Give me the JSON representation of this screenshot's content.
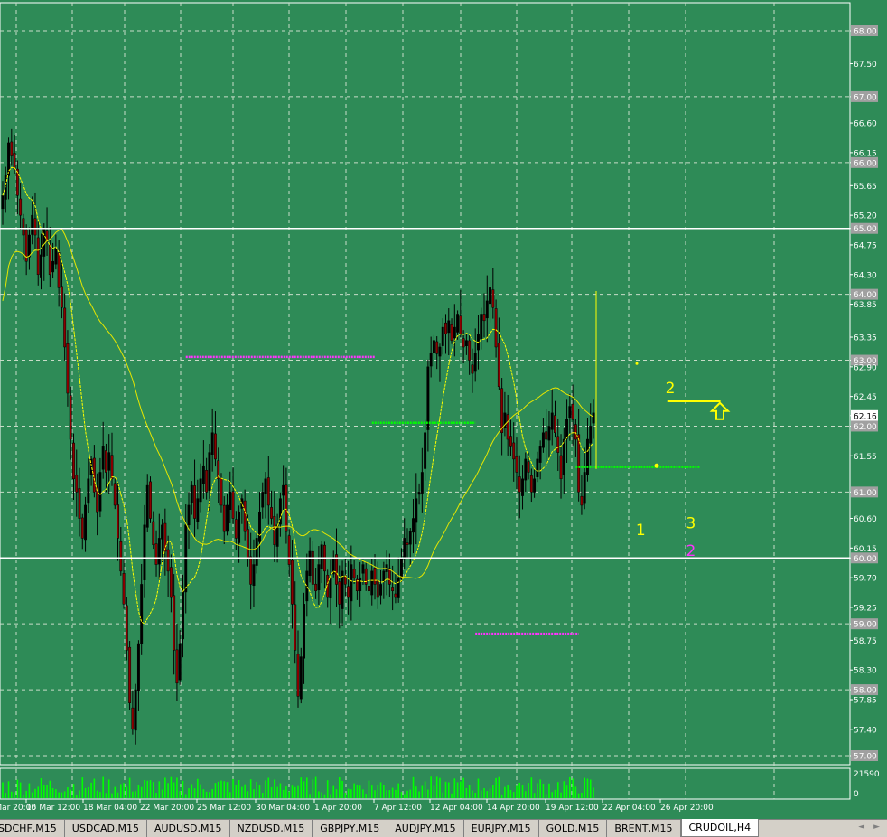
{
  "chart_data": {
    "type": "candlestick",
    "symbol": "CRUDOIL",
    "timeframe": "H4",
    "ylim": [
      56.4,
      68.5
    ],
    "y_axis_labels": [
      "68.00",
      "67.50",
      "67.00",
      "66.60",
      "66.15",
      "66.00",
      "65.65",
      "65.20",
      "65.00",
      "64.75",
      "64.30",
      "64.00",
      "63.85",
      "63.35",
      "63.00",
      "62.90",
      "62.45",
      "62.16",
      "62.00",
      "61.55",
      "61.00",
      "60.60",
      "60.15",
      "60.00",
      "59.70",
      "59.25",
      "59.00",
      "58.75",
      "58.30",
      "58.00",
      "57.85",
      "57.40",
      "57.00"
    ],
    "boxed_levels": [
      "68.00",
      "67.00",
      "66.00",
      "65.00",
      "64.00",
      "63.00",
      "62.00",
      "61.00",
      "60.00",
      "59.00",
      "58.00",
      "57.00"
    ],
    "current_price": "62.16",
    "x_axis_labels": [
      "11 Mar 20:00",
      "15 Mar 12:00",
      "18 Mar 04:00",
      "22 Mar 20:00",
      "25 Mar 12:00",
      "30 Mar 04:00",
      "1 Apr 20:00",
      "7 Apr 12:00",
      "12 Apr 04:00",
      "14 Apr 20:00",
      "19 Apr 12:00",
      "22 Apr 04:00",
      "26 Apr 20:00"
    ],
    "volume_axis_labels": [
      "21590",
      "0"
    ],
    "horizontal_lines": [
      65.0,
      60.0
    ],
    "segments": [
      {
        "color": "#ff33ff",
        "y": 63.05,
        "x_from_bar": 62,
        "x_to_bar": 126
      },
      {
        "color": "#00ff00",
        "y": 62.05,
        "x_from_bar": 125,
        "x_to_bar": 160
      },
      {
        "color": "#ff33ff",
        "y": 58.85,
        "x_from_bar": 160,
        "x_to_bar": 195
      },
      {
        "color": "#00ff00",
        "y": 61.38,
        "x_from_bar": 194,
        "x_to_bar": 236
      },
      {
        "color": "#ffff00",
        "y": 62.38,
        "x_from_bar": 225,
        "x_to_bar": 243
      }
    ],
    "annotations": [
      {
        "text": "1",
        "color": "#ffff00",
        "bar": 216,
        "price": 60.35
      },
      {
        "text": "2",
        "color": "#ffff00",
        "bar": 226,
        "price": 62.5
      },
      {
        "text": "3",
        "color": "#ffff00",
        "bar": 233,
        "price": 60.45
      },
      {
        "text": "2",
        "color": "#ff33ff",
        "bar": 233,
        "price": 60.03
      }
    ],
    "series": [
      {
        "name": "",
        "values": [
          65.5,
          65.8,
          66.3,
          66.1,
          65.9,
          65.5,
          65.2,
          64.9,
          64.5,
          64.9,
          65.2,
          64.9,
          64.3,
          64.6,
          65.0,
          64.8,
          64.3,
          64.5,
          64.7,
          64.1,
          63.8,
          63.2,
          62.5,
          61.8,
          61.2,
          61.0,
          60.6,
          60.3,
          60.8,
          61.2,
          61.5,
          61.0,
          60.7,
          61.3,
          61.7,
          61.3,
          61.6,
          61.2,
          60.8,
          60.3,
          59.8,
          59.3,
          58.6,
          57.8,
          57.4,
          58.0,
          58.7,
          59.6,
          60.5,
          61.1,
          60.6,
          60.2,
          59.9,
          60.3,
          60.5,
          60.1,
          59.8,
          59.4,
          58.6,
          58.1,
          58.7,
          59.5,
          60.5,
          60.8,
          61.1,
          60.6,
          60.9,
          61.2,
          61.4,
          61.0,
          61.6,
          61.9,
          61.5,
          61.2,
          60.8,
          60.4,
          60.8,
          61.0,
          60.6,
          60.3,
          60.7,
          60.9,
          60.4,
          60.0,
          59.6,
          59.9,
          60.3,
          60.7,
          61.0,
          61.2,
          60.8,
          60.6,
          60.2,
          60.5,
          60.9,
          61.1,
          60.4,
          59.9,
          59.3,
          58.6,
          57.9,
          58.5,
          59.3,
          59.8,
          60.1,
          59.6,
          59.5,
          59.9,
          60.2,
          59.8,
          59.4,
          59.7,
          60.0,
          59.6,
          59.3,
          59.8,
          59.6,
          59.4,
          59.9,
          59.7,
          59.5,
          59.7,
          59.9,
          59.6,
          59.5,
          59.8,
          59.6,
          59.4,
          59.6,
          59.8,
          59.9,
          59.6,
          59.5,
          59.4,
          59.7,
          60.0,
          60.3,
          60.2,
          60.4,
          60.6,
          60.9,
          61.0,
          61.3,
          61.9,
          62.9,
          63.1,
          63.3,
          63.1,
          63.2,
          63.5,
          63.4,
          63.6,
          63.3,
          63.5,
          63.7,
          63.4,
          63.2,
          63.3,
          63.0,
          62.8,
          63.1,
          63.4,
          63.7,
          63.6,
          63.9,
          64.1,
          63.8,
          63.2,
          62.6,
          61.9,
          62.2,
          61.8,
          61.7,
          61.5,
          61.3,
          61.0,
          61.2,
          61.5,
          61.3,
          61.0,
          61.2,
          61.5,
          61.7,
          61.9,
          61.8,
          62.0,
          62.2,
          61.9,
          61.6,
          61.2,
          61.8,
          62.1,
          62.3,
          62.1,
          61.8,
          61.0,
          60.8,
          61.3,
          61.8,
          62.0,
          62.2
        ]
      },
      {
        "name": "",
        "values": []
      },
      {
        "name": "",
        "values": []
      }
    ]
  },
  "tabs": {
    "items": [
      {
        "label": "USDCHF,M15",
        "active": false
      },
      {
        "label": "USDCAD,M15",
        "active": false
      },
      {
        "label": "AUDUSD,M15",
        "active": false
      },
      {
        "label": "NZDUSD,M15",
        "active": false
      },
      {
        "label": "GBPJPY,M15",
        "active": false
      },
      {
        "label": "AUDJPY,M15",
        "active": false
      },
      {
        "label": "EURJPY,M15",
        "active": false
      },
      {
        "label": "GOLD,M15",
        "active": false
      },
      {
        "label": "BRENT,M15",
        "active": false
      },
      {
        "label": "CRUDOIL,H4",
        "active": true
      }
    ],
    "scroll_left": "◄",
    "scroll_right": "►"
  },
  "colors": {
    "background": "#2e8b57",
    "grid": "#c8dcc8",
    "bull_candle": "#000000",
    "bear_candle": "#8b0000",
    "ma_fast": "#ffff00",
    "ma_slow": "#e6e600",
    "volume": "#00ff00",
    "level_line": "#ffffff",
    "arrow": "#ffff00"
  },
  "icons": {
    "buy_arrow": "up-arrow-icon"
  }
}
